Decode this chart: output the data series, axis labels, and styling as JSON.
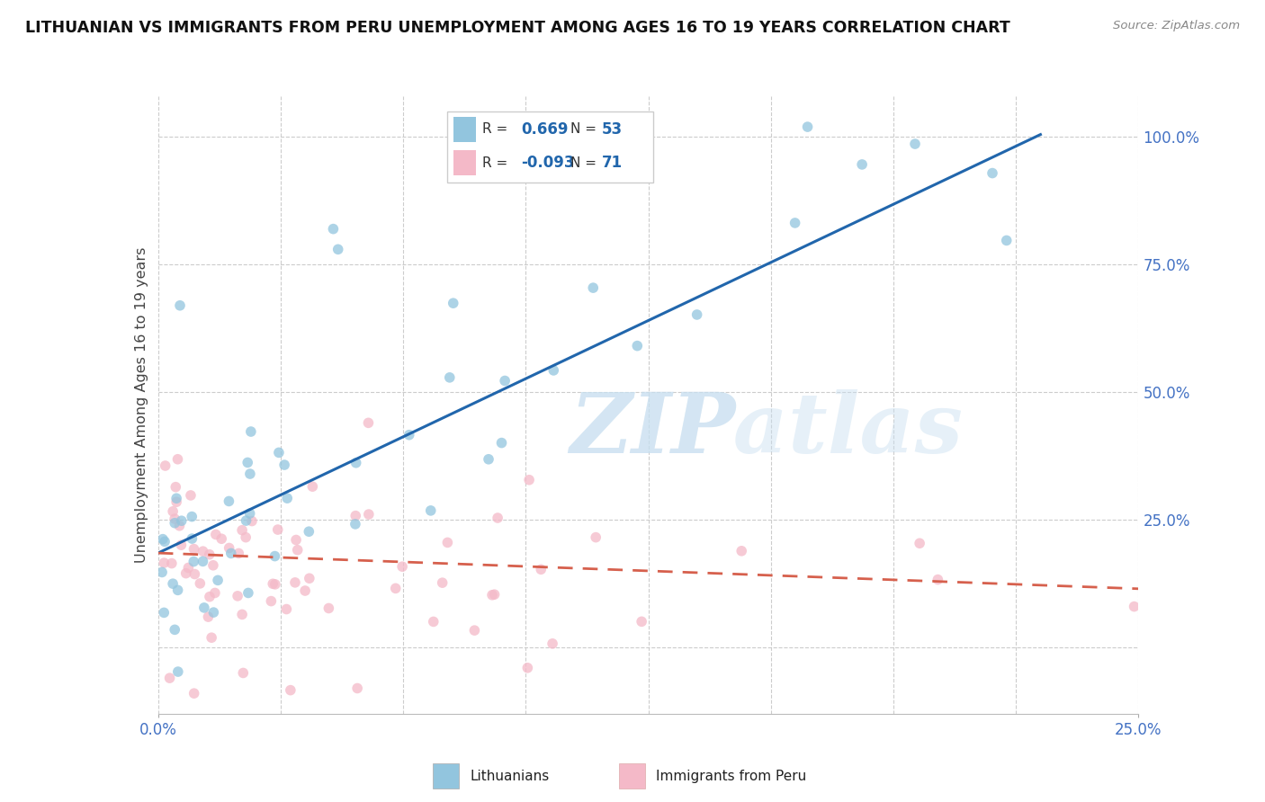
{
  "title": "LITHUANIAN VS IMMIGRANTS FROM PERU UNEMPLOYMENT AMONG AGES 16 TO 19 YEARS CORRELATION CHART",
  "source": "Source: ZipAtlas.com",
  "ylabel": "Unemployment Among Ages 16 to 19 years",
  "blue_color": "#92c5de",
  "pink_color": "#f4b9c8",
  "blue_line_color": "#2166ac",
  "pink_line_color": "#d6604d",
  "blue_R": "0.669",
  "blue_N": "53",
  "pink_R": "-0.093",
  "pink_N": "71",
  "blue_line_x0": 0.0,
  "blue_line_y0": 0.185,
  "blue_line_x1": 0.225,
  "blue_line_y1": 1.005,
  "pink_line_x0": 0.0,
  "pink_line_y0": 0.185,
  "pink_line_x1": 0.25,
  "pink_line_y1": 0.115,
  "xmin": 0.0,
  "xmax": 0.25,
  "ymin": -0.13,
  "ymax": 1.08,
  "yticks": [
    0.0,
    0.25,
    0.5,
    0.75,
    1.0
  ],
  "ytick_labels": [
    "",
    "25.0%",
    "50.0%",
    "75.0%",
    "100.0%"
  ],
  "xtick_labels": [
    "0.0%",
    "25.0%"
  ]
}
